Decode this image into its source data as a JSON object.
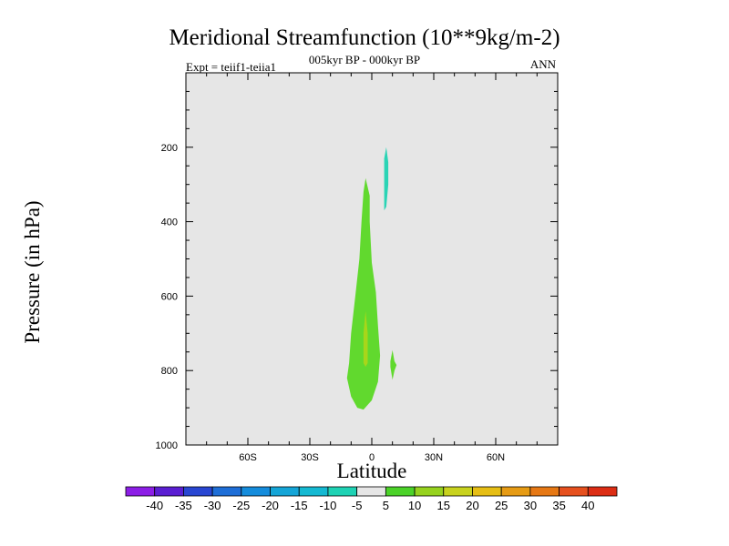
{
  "chart_data": {
    "type": "contour",
    "title": "Meridional Streamfunction (10**9kg/m-2)",
    "subtitle": "005kyr BP - 000kyr BP",
    "annotation_left": "Expt = teiif1-teiia1",
    "annotation_right": "ANN",
    "xlabel": "Latitude",
    "ylabel": "Pressure (in hPa)",
    "xlim": [
      -90,
      90
    ],
    "ylim": [
      1000,
      0
    ],
    "x_ticks": [
      {
        "value": -60,
        "label": "60S"
      },
      {
        "value": -30,
        "label": "30S"
      },
      {
        "value": 0,
        "label": "0"
      },
      {
        "value": 30,
        "label": "30N"
      },
      {
        "value": 60,
        "label": "60N"
      }
    ],
    "y_ticks": [
      {
        "value": 200,
        "label": "200"
      },
      {
        "value": 400,
        "label": "400"
      },
      {
        "value": 600,
        "label": "600"
      },
      {
        "value": 800,
        "label": "800"
      },
      {
        "value": 1000,
        "label": "1000"
      }
    ],
    "background_color": "#e6e6e6",
    "regions": [
      {
        "name": "positive-5-10-main-cell",
        "level": "5 to 10",
        "color": "#61d92e",
        "points": [
          [
            -3,
            283
          ],
          [
            -1,
            330
          ],
          [
            -1,
            400
          ],
          [
            0,
            510
          ],
          [
            2,
            590
          ],
          [
            3,
            680
          ],
          [
            4,
            760
          ],
          [
            3,
            830
          ],
          [
            0,
            880
          ],
          [
            -4,
            905
          ],
          [
            -7,
            900
          ],
          [
            -10,
            870
          ],
          [
            -12,
            820
          ],
          [
            -11,
            780
          ],
          [
            -10,
            700
          ],
          [
            -8,
            600
          ],
          [
            -6,
            500
          ],
          [
            -5,
            400
          ],
          [
            -4,
            320
          ]
        ]
      },
      {
        "name": "positive-10-15-core",
        "level": "10 to 15",
        "color": "#a8d61a",
        "points": [
          [
            -3,
            640
          ],
          [
            -2,
            700
          ],
          [
            -2,
            780
          ],
          [
            -3,
            790
          ],
          [
            -4,
            780
          ],
          [
            -4,
            700
          ]
        ]
      },
      {
        "name": "positive-5-10-small-cell",
        "level": "5 to 10",
        "color": "#61d92e",
        "points": [
          [
            10,
            745
          ],
          [
            11,
            775
          ],
          [
            12,
            785
          ],
          [
            11,
            800
          ],
          [
            10,
            825
          ],
          [
            9,
            790
          ],
          [
            9,
            775
          ]
        ]
      },
      {
        "name": "negative-10-5-cell",
        "level": "-10 to -5",
        "color": "#2ad4b5",
        "points": [
          [
            7,
            200
          ],
          [
            8,
            240
          ],
          [
            8,
            300
          ],
          [
            7,
            360
          ],
          [
            6,
            370
          ],
          [
            6,
            300
          ],
          [
            6,
            230
          ]
        ]
      }
    ],
    "colorbar": {
      "labels": [
        "-40",
        "-35",
        "-30",
        "-25",
        "-20",
        "-15",
        "-10",
        "-5",
        "5",
        "10",
        "15",
        "20",
        "25",
        "30",
        "35",
        "40"
      ],
      "colors": [
        "#8c1ee6",
        "#5a1ed2",
        "#2846d2",
        "#1e6ed7",
        "#148cdc",
        "#14a5d7",
        "#14b9d2",
        "#1ed2b4",
        "#e6e6e6",
        "#4bd228",
        "#96d21e",
        "#c8d21e",
        "#e6be14",
        "#e69b14",
        "#e67814",
        "#e6501e",
        "#dc2d14"
      ]
    }
  }
}
